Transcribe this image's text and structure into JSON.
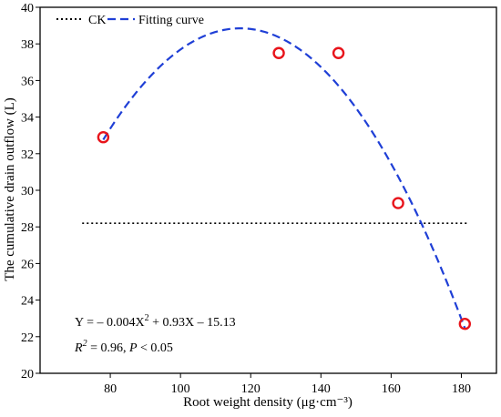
{
  "chart_data": {
    "type": "scatter",
    "xlabel": "Root weight density (μg·cm⁻³)",
    "ylabel": "The cumulative drain outflow (L)",
    "xlim": [
      60,
      190
    ],
    "ylim": [
      20,
      40
    ],
    "xticks": [
      "80",
      "100",
      "120",
      "140",
      "160",
      "180"
    ],
    "yticks": [
      "20",
      "22",
      "24",
      "26",
      "28",
      "30",
      "32",
      "34",
      "36",
      "38",
      "40"
    ],
    "grid": false,
    "legend_position": "top-left",
    "points": {
      "color": "#e8141b",
      "x": [
        78,
        128,
        145,
        162,
        181
      ],
      "y": [
        32.9,
        37.5,
        37.5,
        29.3,
        22.7
      ]
    },
    "ck": {
      "name": "CK",
      "y": 28.2,
      "x_range": [
        72,
        182
      ],
      "color": "#000000",
      "style": "dotted"
    },
    "fitting_curve": {
      "name": "Fitting curve",
      "color": "#1f3fd6",
      "style": "dashed",
      "x_range": [
        78,
        181
      ],
      "vertex": [
        117,
        38.85
      ],
      "a": -0.004,
      "equation": {
        "y": "Y = – 0.004X",
        "exp": "2",
        "rest": " + 0.93X – 15.13"
      },
      "stats": {
        "r": "R",
        "r_exp": "2",
        "r_rest": " = 0.96, ",
        "p": "P",
        "p_rest": " < 0.05"
      }
    }
  }
}
